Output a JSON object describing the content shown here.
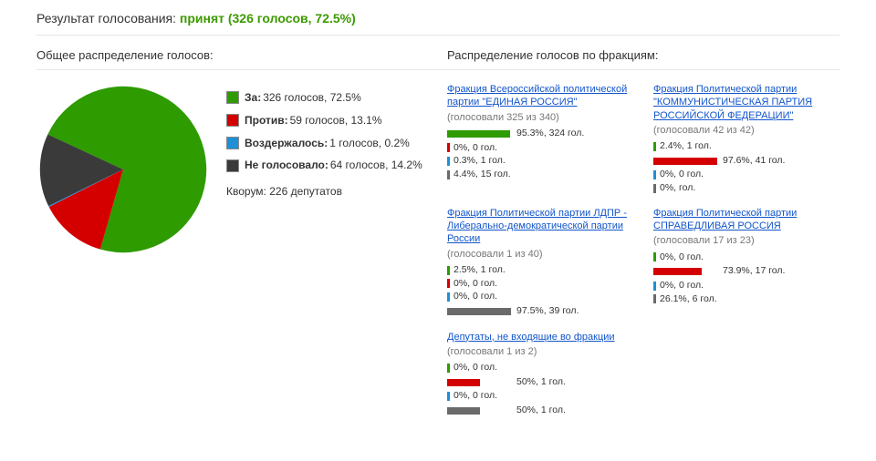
{
  "header": {
    "label": "Результат голосования:",
    "result_text": "принят (326 голосов, 72.5%)",
    "result_color": "#3c9a00"
  },
  "overall": {
    "title": "Общее распределение голосов:",
    "pie": {
      "size": 190,
      "background": "#ffffff",
      "slices": [
        {
          "key": "for",
          "label": "За:",
          "value_text": "326 голосов, 72.5%",
          "percent": 72.5,
          "color": "#2e9b00"
        },
        {
          "key": "against",
          "label": "Против:",
          "value_text": "59 голосов, 13.1%",
          "percent": 13.1,
          "color": "#d40000"
        },
        {
          "key": "abstain",
          "label": "Воздержалось:",
          "value_text": "1 голосов, 0.2%",
          "percent": 0.2,
          "color": "#1e90d8"
        },
        {
          "key": "novote",
          "label": "Не голосовало:",
          "value_text": "64 голосов, 14.2%",
          "percent": 14.2,
          "color": "#3a3a3a"
        }
      ],
      "start_angle": -155
    },
    "quorum": "Кворум: 226 депутатов"
  },
  "factions_section": {
    "title": "Распределение голосов по фракциям:",
    "bar_track_width": 72,
    "categories": [
      {
        "key": "for",
        "color": "#2e9b00"
      },
      {
        "key": "against",
        "color": "#d40000"
      },
      {
        "key": "abstain",
        "color": "#1e90d8"
      },
      {
        "key": "novote",
        "color": "#6a6a6a"
      }
    ],
    "items": [
      {
        "title": "Фракция Всероссийской политической партии \"ЕДИНАЯ РОССИЯ\"",
        "sub": "(голосовали 325 из 340)",
        "rows": [
          {
            "key": "for",
            "percent": 95.3,
            "text": "95.3%, 324 гол.",
            "full_bar": true
          },
          {
            "key": "against",
            "percent": 0,
            "text": "0%, 0 гол."
          },
          {
            "key": "abstain",
            "percent": 0.3,
            "text": "0.3%, 1 гол."
          },
          {
            "key": "novote",
            "percent": 4.4,
            "text": "4.4%, 15 гол."
          }
        ]
      },
      {
        "title": "Фракция Политической партии \"КОММУНИСТИЧЕСКАЯ ПАРТИЯ РОССИЙСКОЙ ФЕДЕРАЦИИ\"",
        "sub": "(голосовали 42 из 42)",
        "rows": [
          {
            "key": "for",
            "percent": 2.4,
            "text": "2.4%, 1 гол."
          },
          {
            "key": "against",
            "percent": 97.6,
            "text": "97.6%, 41 гол.",
            "full_bar": true
          },
          {
            "key": "abstain",
            "percent": 0,
            "text": "0%, 0 гол."
          },
          {
            "key": "novote",
            "percent": 0,
            "text": "0%, гол."
          }
        ]
      },
      {
        "title": "Фракция Политической партии ЛДПР - Либерально-демократической партии России",
        "sub": "(голосовали 1 из 40)",
        "rows": [
          {
            "key": "for",
            "percent": 2.5,
            "text": "2.5%, 1 гол."
          },
          {
            "key": "against",
            "percent": 0,
            "text": "0%, 0 гол."
          },
          {
            "key": "abstain",
            "percent": 0,
            "text": "0%, 0 гол."
          },
          {
            "key": "novote",
            "percent": 97.5,
            "text": "97.5%, 39 гол.",
            "full_bar": true
          }
        ]
      },
      {
        "title": "Фракция Политической партии СПРАВЕДЛИВАЯ РОССИЯ",
        "sub": "(голосовали 17 из 23)",
        "rows": [
          {
            "key": "for",
            "percent": 0,
            "text": "0%, 0 гол."
          },
          {
            "key": "against",
            "percent": 73.9,
            "text": "73.9%, 17 гол.",
            "full_bar": true
          },
          {
            "key": "abstain",
            "percent": 0,
            "text": "0%, 0 гол."
          },
          {
            "key": "novote",
            "percent": 26.1,
            "text": "26.1%, 6 гол."
          }
        ]
      },
      {
        "title": "Депутаты, не входящие во фракции",
        "sub": "(голосовали 1 из 2)",
        "rows": [
          {
            "key": "for",
            "percent": 0,
            "text": "0%, 0 гол."
          },
          {
            "key": "against",
            "percent": 50,
            "text": "50%, 1 гол.",
            "full_bar": true
          },
          {
            "key": "abstain",
            "percent": 0,
            "text": "0%, 0 гол."
          },
          {
            "key": "novote",
            "percent": 50,
            "text": "50%, 1 гол.",
            "full_bar": true
          }
        ]
      }
    ]
  }
}
